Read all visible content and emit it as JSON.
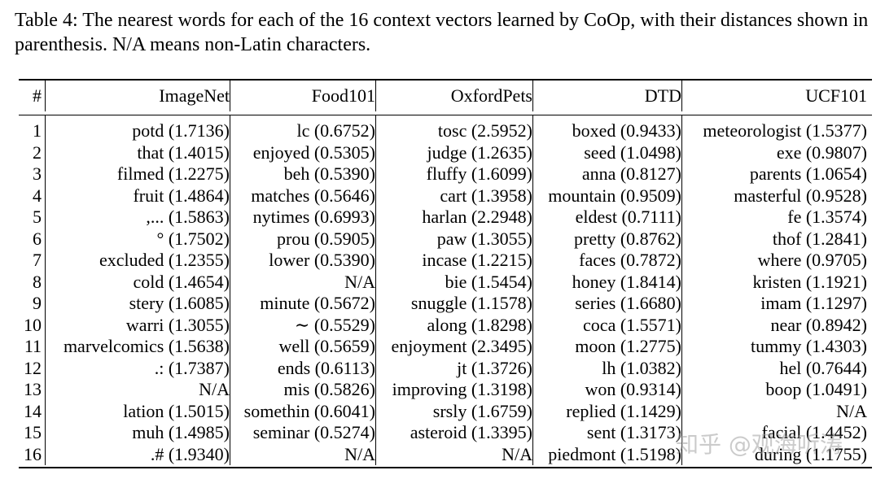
{
  "caption": "Table 4: The nearest words for each of the 16 context vectors learned by CoOp, with their distances shown in parenthesis. N/A means non-Latin characters.",
  "headers": [
    "#",
    "ImageNet",
    "Food101",
    "OxfordPets",
    "DTD",
    "UCF101"
  ],
  "rows": [
    [
      "1",
      "potd (1.7136)",
      "lc (0.6752)",
      "tosc (2.5952)",
      "boxed (0.9433)",
      "meteorologist (1.5377)"
    ],
    [
      "2",
      "that (1.4015)",
      "enjoyed (0.5305)",
      "judge (1.2635)",
      "seed (1.0498)",
      "exe (0.9807)"
    ],
    [
      "3",
      "filmed (1.2275)",
      "beh (0.5390)",
      "fluffy (1.6099)",
      "anna (0.8127)",
      "parents (1.0654)"
    ],
    [
      "4",
      "fruit (1.4864)",
      "matches (0.5646)",
      "cart (1.3958)",
      "mountain (0.9509)",
      "masterful (0.9528)"
    ],
    [
      "5",
      ",... (1.5863)",
      "nytimes (0.6993)",
      "harlan (2.2948)",
      "eldest (0.7111)",
      "fe (1.3574)"
    ],
    [
      "6",
      "° (1.7502)",
      "prou (0.5905)",
      "paw (1.3055)",
      "pretty (0.8762)",
      "thof (1.2841)"
    ],
    [
      "7",
      "excluded (1.2355)",
      "lower (0.5390)",
      "incase (1.2215)",
      "faces (0.7872)",
      "where (0.9705)"
    ],
    [
      "8",
      "cold (1.4654)",
      "N/A",
      "bie (1.5454)",
      "honey (1.8414)",
      "kristen (1.1921)"
    ],
    [
      "9",
      "stery (1.6085)",
      "minute (0.5672)",
      "snuggle (1.1578)",
      "series (1.6680)",
      "imam (1.1297)"
    ],
    [
      "10",
      "warri (1.3055)",
      "∼ (0.5529)",
      "along (1.8298)",
      "coca (1.5571)",
      "near (0.8942)"
    ],
    [
      "11",
      "marvelcomics (1.5638)",
      "well (0.5659)",
      "enjoyment (2.3495)",
      "moon (1.2775)",
      "tummy (1.4303)"
    ],
    [
      "12",
      ".: (1.7387)",
      "ends (0.6113)",
      "jt (1.3726)",
      "lh (1.0382)",
      "hel (0.7644)"
    ],
    [
      "13",
      "N/A",
      "mis (0.5826)",
      "improving (1.3198)",
      "won (0.9314)",
      "boop (1.0491)"
    ],
    [
      "14",
      "lation (1.5015)",
      "somethin (0.6041)",
      "srsly (1.6759)",
      "replied (1.1429)",
      "N/A"
    ],
    [
      "15",
      "muh (1.4985)",
      "seminar (0.5274)",
      "asteroid (1.3395)",
      "sent (1.3173)",
      "facial (1.4452)"
    ],
    [
      "16",
      ".# (1.9340)",
      "N/A",
      "N/A",
      "piedmont (1.5198)",
      "during (1.1755)"
    ]
  ],
  "watermark": "知乎 @观海听涛"
}
